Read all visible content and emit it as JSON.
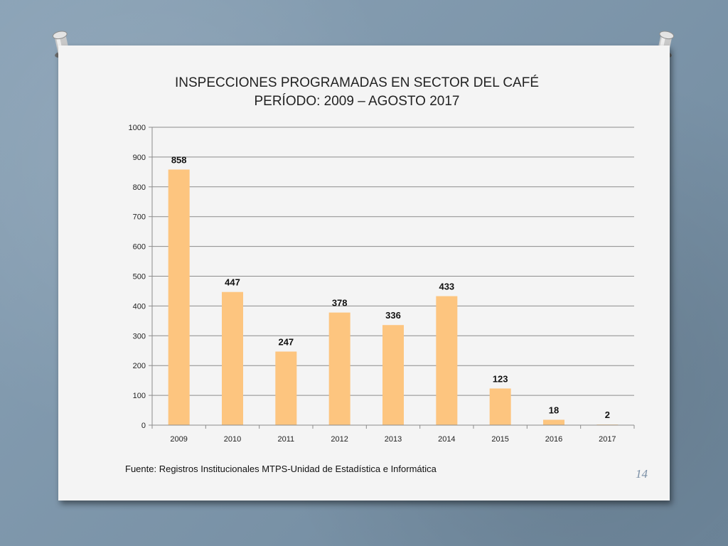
{
  "slide": {
    "source_text": "Fuente: Registros Institucionales MTPS-Unidad de Estadística e Informática",
    "page_number": "14"
  },
  "chart_data": {
    "type": "bar",
    "title": "INSPECCIONES PROGRAMADAS EN SECTOR DEL CAFÉ",
    "subtitle": "PERÍODO: 2009 – AGOSTO 2017",
    "categories": [
      "2009",
      "2010",
      "2011",
      "2012",
      "2013",
      "2014",
      "2015",
      "2016",
      "2017"
    ],
    "values": [
      858,
      447,
      247,
      378,
      336,
      433,
      123,
      18,
      2
    ],
    "data_labels": [
      "858",
      "447",
      "247",
      "378",
      "336",
      "433",
      "123",
      "18",
      "2"
    ],
    "ylim": [
      0,
      1000
    ],
    "yticks": [
      0,
      100,
      200,
      300,
      400,
      500,
      600,
      700,
      800,
      900,
      1000
    ],
    "ytick_labels": [
      "0",
      "100",
      "200",
      "300",
      "400",
      "500",
      "600",
      "700",
      "800",
      "900",
      "1000"
    ],
    "grid": true,
    "legend": "none",
    "bar_color": "#fdc57f",
    "xlabel": "",
    "ylabel": ""
  }
}
